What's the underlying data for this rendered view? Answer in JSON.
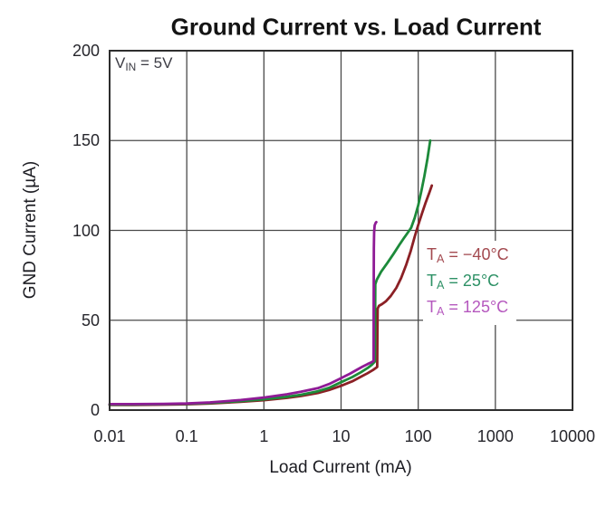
{
  "annotation": {
    "base": "V",
    "sub": "IN",
    "rest": " = 5V"
  },
  "legend": [
    {
      "base": "T",
      "sub": "A",
      "rest": " = −40°C",
      "color": "#a3494f"
    },
    {
      "base": "T",
      "sub": "A",
      "rest": " = 25°C",
      "color": "#2e9166"
    },
    {
      "base": "T",
      "sub": "A",
      "rest": " = 125°C",
      "color": "#b558be"
    }
  ],
  "colors": {
    "grid": "#4a4a4a",
    "plot_border": "#2e2e2e",
    "background": "#ffffff",
    "title_text": "#141414",
    "tick_text": "#26262c"
  },
  "chart_data": {
    "type": "line",
    "title": "Ground Current vs. Load Current",
    "xlabel": "Load Current (mA)",
    "ylabel": "GND Current (µA)",
    "x_scale": "log",
    "y_scale": "linear",
    "xlim": [
      0.01,
      10000
    ],
    "ylim": [
      0,
      200
    ],
    "x_ticks": [
      0.01,
      0.1,
      1,
      10,
      100,
      1000,
      10000
    ],
    "x_tick_labels": [
      "0.01",
      "0.1",
      "1",
      "10",
      "100",
      "1000",
      "10000"
    ],
    "y_ticks": [
      0,
      50,
      100,
      150,
      200
    ],
    "y_tick_labels": [
      "0",
      "50",
      "100",
      "150",
      "200"
    ],
    "x_gridlines": [
      0.1,
      1,
      10,
      100,
      1000
    ],
    "y_gridlines": [
      50,
      100,
      150
    ],
    "grid": true,
    "legend_position": "inside-right-middle",
    "annotation_text": "VIN = 5V",
    "series": [
      {
        "name": "TA = −40°C",
        "color": "#8b2025",
        "points": [
          [
            0.01,
            2.8
          ],
          [
            0.02,
            2.85
          ],
          [
            0.05,
            3.0
          ],
          [
            0.1,
            3.2
          ],
          [
            0.2,
            3.7
          ],
          [
            0.5,
            4.6
          ],
          [
            1,
            5.5
          ],
          [
            2,
            6.8
          ],
          [
            3,
            7.8
          ],
          [
            5,
            9.5
          ],
          [
            7,
            11.2
          ],
          [
            10,
            13.5
          ],
          [
            14,
            16.0
          ],
          [
            18,
            18.5
          ],
          [
            22,
            20.5
          ],
          [
            26,
            22.3
          ],
          [
            29.4,
            24.0
          ],
          [
            29.6,
            40.0
          ],
          [
            29.8,
            56.5
          ],
          [
            31,
            58.0
          ],
          [
            34,
            59.0
          ],
          [
            38,
            60.5
          ],
          [
            44,
            63.5
          ],
          [
            52,
            68.0
          ],
          [
            60,
            73.5
          ],
          [
            70,
            81.0
          ],
          [
            80,
            88.5
          ],
          [
            90,
            96.5
          ],
          [
            100,
            103.0
          ],
          [
            112,
            109.5
          ],
          [
            125,
            115.5
          ],
          [
            138,
            120.5
          ],
          [
            150,
            125.0
          ]
        ]
      },
      {
        "name": "TA = 25°C",
        "color": "#1c8a3a",
        "points": [
          [
            0.01,
            3.0
          ],
          [
            0.02,
            3.05
          ],
          [
            0.05,
            3.25
          ],
          [
            0.1,
            3.5
          ],
          [
            0.2,
            4.0
          ],
          [
            0.5,
            5.0
          ],
          [
            1,
            6.0
          ],
          [
            2,
            7.4
          ],
          [
            3,
            8.5
          ],
          [
            5,
            10.5
          ],
          [
            7,
            12.4
          ],
          [
            10,
            15.5
          ],
          [
            14,
            18.4
          ],
          [
            18,
            21.0
          ],
          [
            22,
            23.4
          ],
          [
            25,
            25.2
          ],
          [
            27.4,
            27.0
          ],
          [
            27.6,
            50.0
          ],
          [
            27.8,
            70.0
          ],
          [
            29,
            72.5
          ],
          [
            33,
            77.0
          ],
          [
            40,
            82.0
          ],
          [
            48,
            87.0
          ],
          [
            57,
            92.0
          ],
          [
            66,
            96.0
          ],
          [
            74,
            99.0
          ],
          [
            81,
            101.5
          ],
          [
            90,
            107.0
          ],
          [
            100,
            114.0
          ],
          [
            110,
            122.0
          ],
          [
            120,
            130.0
          ],
          [
            132,
            140.0
          ],
          [
            143,
            150.0
          ]
        ]
      },
      {
        "name": "TA = 125°C",
        "color": "#8f1b96",
        "points": [
          [
            0.01,
            3.3
          ],
          [
            0.02,
            3.3
          ],
          [
            0.05,
            3.45
          ],
          [
            0.1,
            3.7
          ],
          [
            0.2,
            4.3
          ],
          [
            0.5,
            5.6
          ],
          [
            1,
            7.0
          ],
          [
            2,
            8.8
          ],
          [
            3,
            10.2
          ],
          [
            5,
            12.2
          ],
          [
            7,
            14.5
          ],
          [
            10,
            17.8
          ],
          [
            13,
            20.2
          ],
          [
            16,
            22.4
          ],
          [
            19,
            24.2
          ],
          [
            22,
            25.6
          ],
          [
            24.5,
            26.5
          ],
          [
            26.4,
            27.3
          ],
          [
            26.5,
            60.0
          ],
          [
            26.6,
            90.0
          ],
          [
            26.8,
            99.0
          ],
          [
            27.3,
            102.8
          ],
          [
            28.2,
            104.3
          ],
          [
            28.6,
            104.6
          ]
        ]
      }
    ]
  }
}
